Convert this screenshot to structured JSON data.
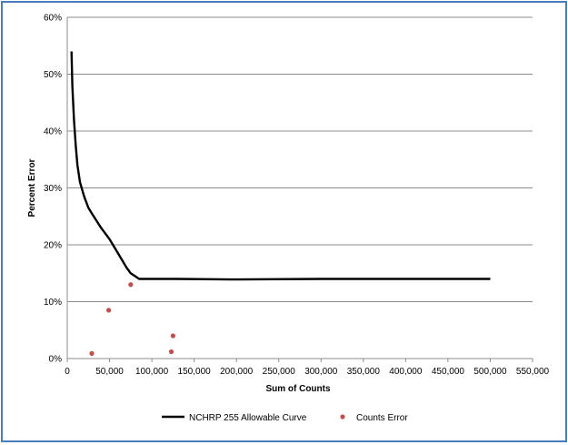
{
  "chart_data": {
    "type": "scatter",
    "title": "",
    "xlabel": "Sum of Counts",
    "ylabel": "Percent Error",
    "xlim": [
      0,
      550000
    ],
    "ylim": [
      0,
      60
    ],
    "x_ticks": [
      0,
      50000,
      100000,
      150000,
      200000,
      250000,
      300000,
      350000,
      400000,
      450000,
      500000,
      550000
    ],
    "x_tick_labels": [
      "0",
      "50,000",
      "100,000",
      "150,000",
      "200,000",
      "250,000",
      "300,000",
      "350,000",
      "400,000",
      "450,000",
      "500,000",
      "550,000"
    ],
    "y_ticks": [
      0,
      10,
      20,
      30,
      40,
      50,
      60
    ],
    "y_tick_labels": [
      "0%",
      "10%",
      "20%",
      "30%",
      "40%",
      "50%",
      "60%"
    ],
    "grid": "horizontal",
    "legend_position": "bottom",
    "series": [
      {
        "name": "NCHRP 255 Allowable Curve",
        "kind": "line",
        "color": "#000000",
        "x": [
          5000,
          6000,
          8000,
          10000,
          12000,
          15000,
          20000,
          25000,
          30000,
          40000,
          50000,
          60000,
          70000,
          75000,
          80000,
          85000,
          90000,
          100000,
          130000,
          200000,
          300000,
          400000,
          500000
        ],
        "y": [
          54,
          48,
          42,
          37.5,
          34,
          31,
          28.5,
          26.5,
          25.3,
          23,
          21,
          18.5,
          16,
          15,
          14.5,
          14,
          14,
          14,
          14,
          13.9,
          14,
          14,
          14
        ]
      },
      {
        "name": "Counts Error",
        "kind": "scatter",
        "color": "#c0504d",
        "x": [
          29000,
          49000,
          75000,
          123000,
          125000
        ],
        "y": [
          0.9,
          8.5,
          13,
          1.2,
          4
        ]
      }
    ]
  }
}
